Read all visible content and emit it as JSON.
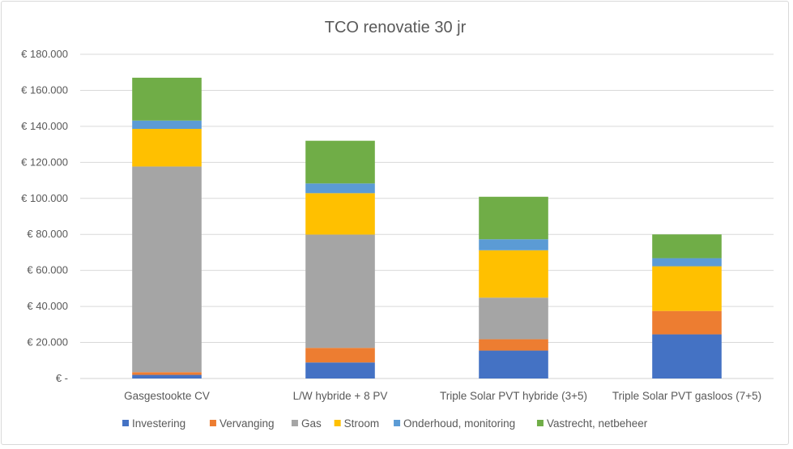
{
  "chart_data": {
    "type": "bar",
    "stacked": true,
    "title": "TCO renovatie 30 jr",
    "xlabel": "",
    "ylabel": "",
    "ylim": [
      0,
      180000
    ],
    "yticks": [
      0,
      20000,
      40000,
      60000,
      80000,
      100000,
      120000,
      140000,
      160000,
      180000
    ],
    "ytick_labels": [
      "€ -",
      "€ 20.000",
      "€ 40.000",
      "€ 60.000",
      "€ 80.000",
      "€ 100.000",
      "€ 120.000",
      "€ 140.000",
      "€ 160.000",
      "€ 180.000"
    ],
    "grid": true,
    "legend_position": "bottom",
    "categories": [
      "Gasgestookte CV",
      "L/W hybride + 8 PV",
      "Triple Solar PVT hybride (3+5)",
      "Triple Solar PVT gasloos (7+5)"
    ],
    "series": [
      {
        "name": "Investering",
        "color": "#4472c4",
        "values": [
          2000,
          8900,
          15500,
          24500
        ]
      },
      {
        "name": "Vervanging",
        "color": "#ed7d31",
        "values": [
          1500,
          8100,
          6300,
          13000
        ]
      },
      {
        "name": "Gas",
        "color": "#a5a5a5",
        "values": [
          114200,
          62900,
          23100,
          0
        ]
      },
      {
        "name": "Stroom",
        "color": "#ffc000",
        "values": [
          20900,
          23000,
          26300,
          24800
        ]
      },
      {
        "name": "Onderhoud, monitoring",
        "color": "#5b9bd5",
        "values": [
          4600,
          5400,
          6100,
          4500
        ]
      },
      {
        "name": "Vastrecht, netbeheer",
        "color": "#70ad47",
        "values": [
          23800,
          23700,
          23600,
          13200
        ]
      }
    ]
  }
}
